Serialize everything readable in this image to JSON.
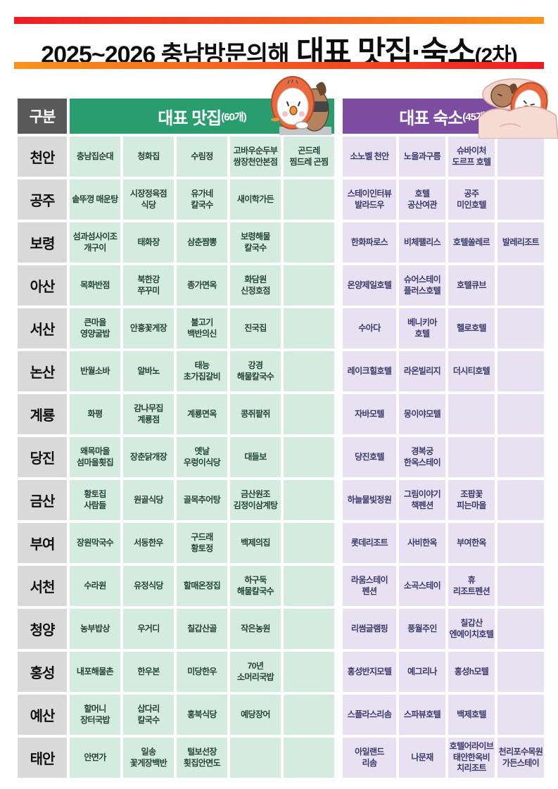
{
  "title": {
    "part1": "2025~2026 충남방문의해",
    "part2": " 대표 맛집·숙소",
    "part3": "(2차)"
  },
  "header": {
    "category": "구분",
    "restaurants_title": "대표 맛집",
    "restaurants_count": "(60개)",
    "lodging_title": "대표 숙소",
    "lodging_count": "(45개)"
  },
  "colors": {
    "bar_red": "#ed1c24",
    "bar_orange": "#f7941d",
    "category_header_bg": "#595959",
    "restaurant_header_bg": "#2a9d6e",
    "lodging_header_bg": "#7c4da1",
    "region_cell_bg": "#d9d9d9",
    "restaurant_cell_bg": "#d3ecdf",
    "lodging_cell_bg": "#e8e1f1",
    "restaurant_text": "#25443a",
    "lodging_text": "#3a3a6b",
    "title_text": "#0d0d0d"
  },
  "rows": [
    {
      "region": "천안",
      "restaurants": [
        "충남집순대",
        "청화집",
        "수림정",
        "고바우순두부\n쌈장천안본점",
        "곤드레\n찜드레 곤찜"
      ],
      "lodgings": [
        "소노벨 천안",
        "노을과구름",
        "슈바이처\n도르프 호텔",
        ""
      ]
    },
    {
      "region": "공주",
      "restaurants": [
        "솥뚜껑 매운탕",
        "시장정육점\n식당",
        "유가네\n칼국수",
        "새이학가든",
        ""
      ],
      "lodgings": [
        "스테이인터뷰\n발라드우",
        "호텔\n공산여관",
        "공주\n미인호텔",
        ""
      ]
    },
    {
      "region": "보령",
      "restaurants": [
        "섬과섬사이조\n개구이",
        "태화장",
        "삼춘짬뽕",
        "보령해물\n칼국수",
        ""
      ],
      "lodgings": [
        "한화파로스",
        "비체팰리스",
        "호텔쏠레르",
        "발레리조트"
      ]
    },
    {
      "region": "아산",
      "restaurants": [
        "목화반점",
        "북한강\n쭈꾸미",
        "종가면옥",
        "화담원\n신정호점",
        ""
      ],
      "lodgings": [
        "온양제일호텔",
        "슈어스테이\n플러스호텔",
        "호텔큐브",
        ""
      ]
    },
    {
      "region": "서산",
      "restaurants": [
        "큰마을\n영양굴밥",
        "안흥꽃게장",
        "불고기\n백반의신",
        "진국집",
        ""
      ],
      "lodgings": [
        "수아다",
        "베니키아\n호텔",
        "헬로호텔",
        ""
      ]
    },
    {
      "region": "논산",
      "restaurants": [
        "반월소바",
        "알바노",
        "태능\n초가집갈비",
        "강경\n해물칼국수",
        ""
      ],
      "lodgings": [
        "레이크힐호텔",
        "라온빌리지",
        "더시티호텔",
        ""
      ]
    },
    {
      "region": "계룡",
      "restaurants": [
        "화평",
        "감나무집\n계룡점",
        "계룡면옥",
        "콩쥐팥쥐",
        ""
      ],
      "lodgings": [
        "자바모텔",
        "몽이야모텔",
        "",
        ""
      ]
    },
    {
      "region": "당진",
      "restaurants": [
        "왜목마을\n섬마을횟집",
        "장춘닭개장",
        "옛날\n우렁이식당",
        "대들보",
        ""
      ],
      "lodgings": [
        "당진호텔",
        "경복궁\n한옥스테이",
        "",
        ""
      ]
    },
    {
      "region": "금산",
      "restaurants": [
        "황토집\n사람들",
        "원골식당",
        "골목추어탕",
        "금산원조\n김정이삼계탕",
        ""
      ],
      "lodgings": [
        "하늘물빛정원",
        "그림이야기\n책펜션",
        "조팝꽃\n피는마을",
        ""
      ]
    },
    {
      "region": "부여",
      "restaurants": [
        "장원막국수",
        "서동한우",
        "구드래\n황토정",
        "백제의집",
        ""
      ],
      "lodgings": [
        "롯데리조트",
        "사비한옥",
        "부여한옥",
        ""
      ]
    },
    {
      "region": "서천",
      "restaurants": [
        "수라원",
        "유정식당",
        "할매온정집",
        "하구둑\n해물칼국수",
        ""
      ],
      "lodgings": [
        "라움스테이\n펜션",
        "소곡스테이",
        "휴\n리조트펜션",
        ""
      ]
    },
    {
      "region": "청양",
      "restaurants": [
        "농부밥상",
        "우거디",
        "칠갑산골",
        "작은농원",
        ""
      ],
      "lodgings": [
        "리썸글램핑",
        "풍월주인",
        "칠갑산\n엔에이치호텔",
        ""
      ]
    },
    {
      "region": "홍성",
      "restaurants": [
        "내포해물촌",
        "한우본",
        "미당한우",
        "70년\n소머리국밥",
        ""
      ],
      "lodgings": [
        "홍성반지모텔",
        "예그리나",
        "홍성h모텔",
        ""
      ]
    },
    {
      "region": "예산",
      "restaurants": [
        "할머니\n장터국밥",
        "삽다리\n칼국수",
        "홍북식당",
        "예당장어",
        ""
      ],
      "lodgings": [
        "스플라스리솜",
        "스파뷰호텔",
        "백제호텔",
        ""
      ]
    },
    {
      "region": "태안",
      "restaurants": [
        "안면가",
        "일송\n꽃게장백반",
        "털보선장\n횟집안면도",
        "",
        ""
      ],
      "lodgings": [
        "아일랜드\n리솜",
        "나문재",
        "호텔어라이브\n태안한옥비\n치리조트",
        "천리포수목원\n가든스테이"
      ]
    }
  ]
}
